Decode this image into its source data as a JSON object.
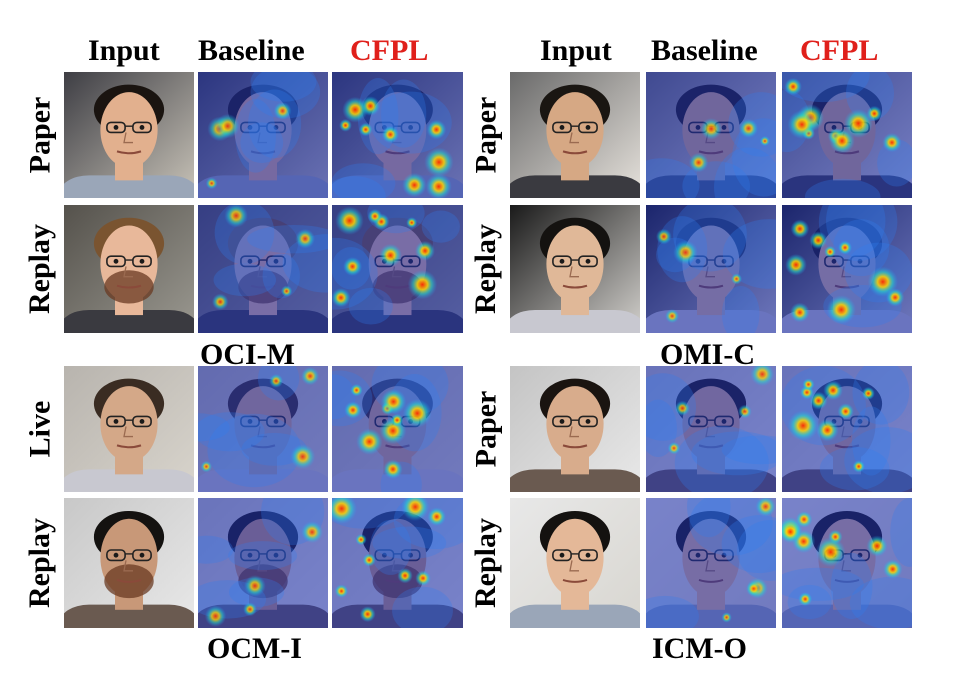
{
  "headers": {
    "input": "Input",
    "baseline": "Baseline",
    "cfpl": "CFPL"
  },
  "colors": {
    "cfpl_header": "#e0201b",
    "heatmap_low": "#1e2fb0",
    "heatmap_high": "#ff2a00"
  },
  "panels": [
    {
      "caption": "OCI-M",
      "rows": [
        "Paper",
        "Replay"
      ],
      "show_headers": true
    },
    {
      "caption": "OMI-C",
      "rows": [
        "Paper",
        "Replay"
      ],
      "show_headers": true
    },
    {
      "caption": "OCM-I",
      "rows": [
        "Live",
        "Replay"
      ],
      "show_headers": false
    },
    {
      "caption": "ICM-O",
      "rows": [
        "Paper",
        "Replay"
      ],
      "show_headers": false
    }
  ]
}
